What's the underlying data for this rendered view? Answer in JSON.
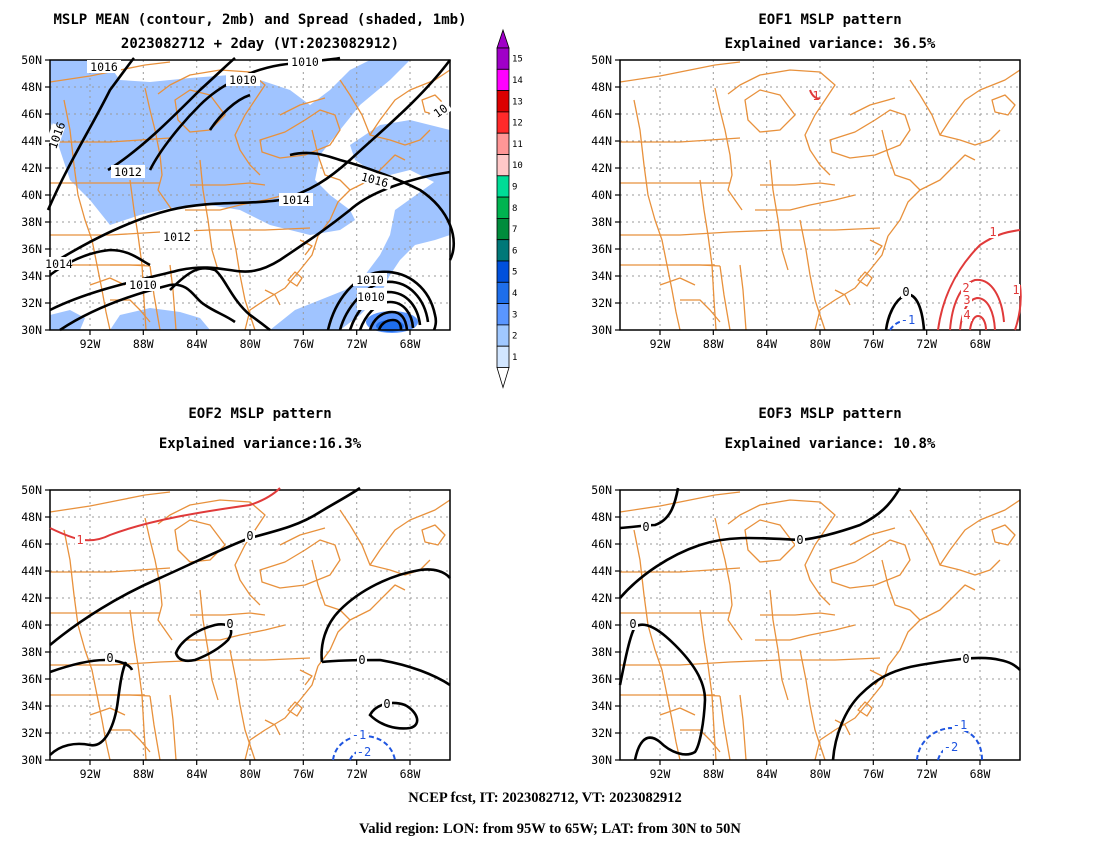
{
  "panels": [
    {
      "id": "mean",
      "title_lines": [
        "MSLP MEAN (contour, 2mb) and Spread (shaded, 1mb)",
        "2023082712 + 2day (VT:2023082912)"
      ]
    },
    {
      "id": "eof1",
      "title_lines": [
        "EOF1 MSLP pattern",
        "Explained variance: 36.5%"
      ]
    },
    {
      "id": "eof2",
      "title_lines": [
        "EOF2 MSLP pattern",
        "Explained variance:16.3%"
      ]
    },
    {
      "id": "eof3",
      "title_lines": [
        "EOF3 MSLP pattern",
        "Explained variance: 10.8%"
      ]
    }
  ],
  "axes": {
    "lat_labels": [
      "50N",
      "48N",
      "46N",
      "44N",
      "42N",
      "40N",
      "38N",
      "36N",
      "34N",
      "32N",
      "30N"
    ],
    "lon_labels": [
      "92W",
      "88W",
      "84W",
      "80W",
      "76W",
      "72W",
      "68W"
    ],
    "lon_range": [
      -95,
      -65
    ],
    "lat_range": [
      30,
      50
    ]
  },
  "colorbar": {
    "labels": [
      "15",
      "14",
      "13",
      "12",
      "11",
      "10",
      "9",
      "8",
      "7",
      "6",
      "5",
      "4",
      "3",
      "2",
      "1"
    ],
    "colors": [
      "#a000c8",
      "#ff00ff",
      "#dc0000",
      "#ff2a2a",
      "#ff9696",
      "#ffc8c8",
      "#00dc96",
      "#00b450",
      "#008c3c",
      "#007878",
      "#0050dc",
      "#1e6eeb",
      "#5a96ff",
      "#a0c8ff",
      "#d2e6ff"
    ]
  },
  "contour_labels": {
    "mean": [
      "1016",
      "1010",
      "1010",
      "1010",
      "1016",
      "1012",
      "1016",
      "1014",
      "1012",
      "1014",
      "1010",
      "1010",
      "10"
    ],
    "eof1": [
      "1",
      "0",
      "-1",
      "1",
      "2",
      "3",
      "4",
      "1"
    ],
    "eof2": [
      "1",
      "0",
      "0",
      "0",
      "0",
      "0",
      "-1",
      "-2"
    ],
    "eof3": [
      "0",
      "0",
      "0",
      "0",
      "-1",
      "-2"
    ]
  },
  "footer": {
    "line1": "NCEP fcst, IT: 2023082712, VT: 2023082912",
    "line2": "Valid region: LON: from 95W to 65W; LAT: from 30N to 50N"
  },
  "colors": {
    "coast": "#e8913c",
    "positive": "#e03a3a",
    "negative": "#1f55e0",
    "mean_contour": "#000000",
    "spread_fill": "#a0c4ff"
  }
}
